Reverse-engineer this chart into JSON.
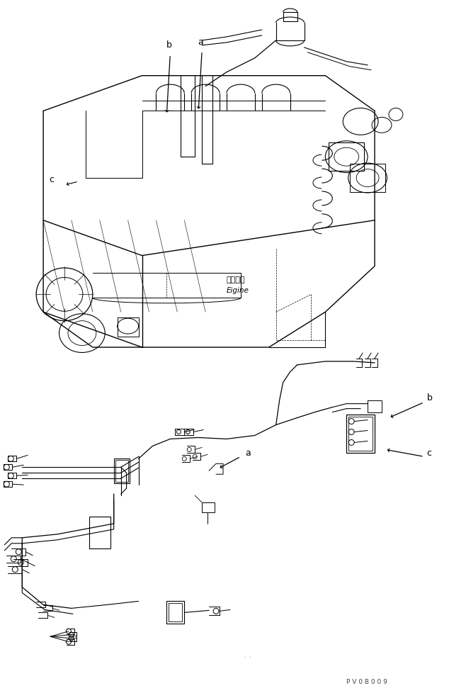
{
  "background_color": "#ffffff",
  "line_color": "#000000",
  "fig_width": 6.34,
  "fig_height": 9.85,
  "dpi": 100,
  "engine_label_jp": "エンジン",
  "engine_label_en": "Eigine",
  "watermark": "P V 0 B 0 0 9",
  "lw_main": 0.8,
  "lw_thin": 0.5,
  "lw_thick": 1.2
}
